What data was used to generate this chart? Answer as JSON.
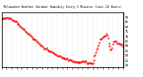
{
  "title": "Milwaukee Weather Outdoor Humidity Every 5 Minutes (Last 24 Hours)",
  "ylabel_right_values": [
    90,
    85,
    80,
    75,
    70,
    65,
    60,
    55,
    50,
    45,
    40
  ],
  "ylim": [
    38,
    95
  ],
  "xlim": [
    0,
    288
  ],
  "background_color": "#ffffff",
  "line_color": "#ff0000",
  "grid_color": "#aaaaaa",
  "title_color": "#000000",
  "num_points": 288,
  "x_ticks_count": 24
}
